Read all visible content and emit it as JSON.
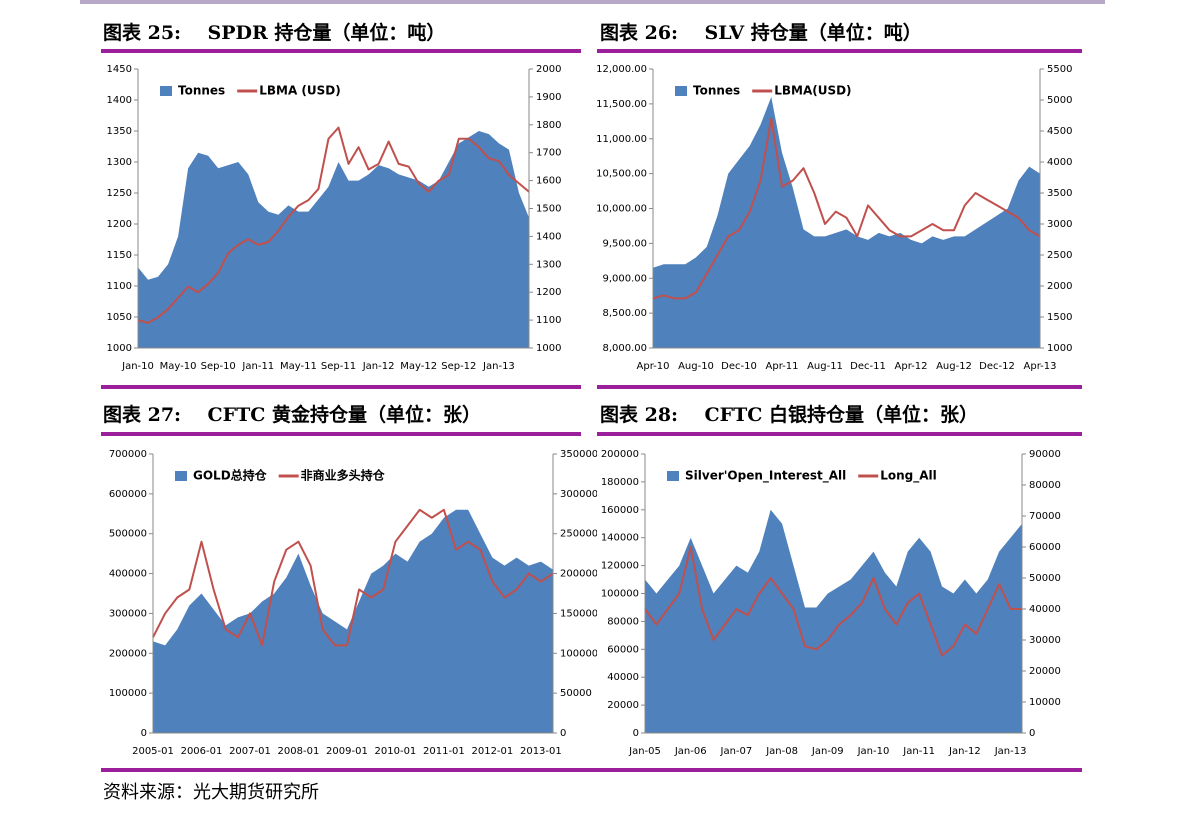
{
  "source": "资料来源：光大期货研究所",
  "chart_data": [
    {
      "type": "combo",
      "title": "图表 25:    SPDR 持仓量（单位：吨）",
      "legend": "upper left",
      "categories": [
        "Jan-10",
        null,
        null,
        null,
        "May-10",
        null,
        null,
        null,
        "Sep-10",
        null,
        null,
        null,
        "Jan-11",
        null,
        null,
        null,
        "May-11",
        null,
        null,
        null,
        "Sep-11",
        null,
        null,
        null,
        "Jan-12",
        null,
        null,
        null,
        "May-12",
        null,
        null,
        null,
        "Sep-12",
        null,
        null,
        null,
        "Jan-13",
        null,
        null,
        null
      ],
      "ylim": [
        1000,
        1450
      ],
      "yticks": [
        1000,
        1050,
        1100,
        1150,
        1200,
        1250,
        1300,
        1350,
        1400,
        1450
      ],
      "y2lim": [
        1000,
        2000
      ],
      "y2ticks": [
        1000,
        1100,
        1200,
        1300,
        1400,
        1500,
        1600,
        1700,
        1800,
        1900,
        2000
      ],
      "series": [
        {
          "name": "Tonnes",
          "type": "area",
          "color": "#4f81bd",
          "values": [
            1130,
            1110,
            1115,
            1135,
            1180,
            1290,
            1315,
            1310,
            1290,
            1295,
            1300,
            1280,
            1235,
            1220,
            1215,
            1230,
            1220,
            1220,
            1240,
            1260,
            1300,
            1270,
            1270,
            1280,
            1295,
            1290,
            1280,
            1275,
            1270,
            1260,
            1270,
            1300,
            1330,
            1340,
            1350,
            1345,
            1330,
            1320,
            1250,
            1210
          ]
        },
        {
          "name": "LBMA (USD)",
          "type": "line",
          "axis": "y2",
          "color": "#c0504d",
          "values": [
            1100,
            1090,
            1110,
            1140,
            1180,
            1220,
            1200,
            1230,
            1270,
            1340,
            1370,
            1390,
            1370,
            1380,
            1420,
            1470,
            1510,
            1530,
            1570,
            1750,
            1790,
            1660,
            1720,
            1640,
            1660,
            1740,
            1660,
            1650,
            1590,
            1560,
            1600,
            1620,
            1750,
            1750,
            1720,
            1680,
            1670,
            1620,
            1590,
            1560
          ]
        }
      ]
    },
    {
      "type": "combo",
      "title": "图表 26:    SLV 持仓量（单位：吨）",
      "legend": "upper left",
      "categories": [
        "Apr-10",
        null,
        null,
        null,
        "Aug-10",
        null,
        null,
        null,
        "Dec-10",
        null,
        null,
        null,
        "Apr-11",
        null,
        null,
        null,
        "Aug-11",
        null,
        null,
        null,
        "Dec-11",
        null,
        null,
        null,
        "Apr-12",
        null,
        null,
        null,
        "Aug-12",
        null,
        null,
        null,
        "Dec-12",
        null,
        null,
        null,
        "Apr-13"
      ],
      "ylim": [
        8000,
        12000
      ],
      "yticks": [
        {
          "value": 8000,
          "label": "8,000.00"
        },
        {
          "value": 8500,
          "label": "8,500.00"
        },
        {
          "value": 9000,
          "label": "9,000.00"
        },
        {
          "value": 9500,
          "label": "9,500.00"
        },
        {
          "value": 10000,
          "label": "10,000.00"
        },
        {
          "value": 10500,
          "label": "10,500.00"
        },
        {
          "value": 11000,
          "label": "11,000.00"
        },
        {
          "value": 11500,
          "label": "11,500.00"
        },
        {
          "value": 12000,
          "label": "12,000.00"
        }
      ],
      "y2lim": [
        1000,
        5500
      ],
      "y2ticks": [
        1000,
        1500,
        2000,
        2500,
        3000,
        3500,
        4000,
        4500,
        5000,
        5500
      ],
      "series": [
        {
          "name": "Tonnes",
          "type": "area",
          "color": "#4f81bd",
          "values": [
            9150,
            9200,
            9200,
            9200,
            9300,
            9450,
            9900,
            10500,
            10700,
            10900,
            11200,
            11600,
            10800,
            10300,
            9700,
            9600,
            9600,
            9650,
            9700,
            9600,
            9550,
            9650,
            9600,
            9650,
            9550,
            9500,
            9600,
            9550,
            9600,
            9600,
            9700,
            9800,
            9900,
            10000,
            10400,
            10600,
            10500
          ]
        },
        {
          "name": "LBMA(USD)",
          "type": "line",
          "axis": "y2",
          "color": "#c0504d",
          "values": [
            1800,
            1850,
            1800,
            1800,
            1900,
            2200,
            2500,
            2800,
            2900,
            3200,
            3700,
            4700,
            3600,
            3700,
            3900,
            3500,
            3000,
            3200,
            3100,
            2800,
            3300,
            3100,
            2900,
            2800,
            2800,
            2900,
            3000,
            2900,
            2900,
            3300,
            3500,
            3400,
            3300,
            3200,
            3100,
            2900,
            2800
          ]
        }
      ]
    },
    {
      "type": "combo",
      "title": "图表 27:    CFTC 黄金持仓量（单位：张）",
      "legend": "upper left",
      "categories": [
        "2005-01",
        null,
        null,
        null,
        "2006-01",
        null,
        null,
        null,
        "2007-01",
        null,
        null,
        null,
        "2008-01",
        null,
        null,
        null,
        "2009-01",
        null,
        null,
        null,
        "2010-01",
        null,
        null,
        null,
        "2011-01",
        null,
        null,
        null,
        "2012-01",
        null,
        null,
        null,
        "2013-01",
        null
      ],
      "ylim": [
        0,
        700000
      ],
      "yticks": [
        0,
        100000,
        200000,
        300000,
        400000,
        500000,
        600000,
        700000
      ],
      "y2lim": [
        0,
        350000
      ],
      "y2ticks": [
        0,
        50000,
        100000,
        150000,
        200000,
        250000,
        300000,
        350000
      ],
      "series": [
        {
          "name": "GOLD总持仓",
          "type": "area",
          "color": "#4f81bd",
          "values": [
            230000,
            220000,
            260000,
            320000,
            350000,
            310000,
            270000,
            290000,
            300000,
            330000,
            350000,
            390000,
            450000,
            370000,
            300000,
            280000,
            260000,
            330000,
            400000,
            420000,
            450000,
            430000,
            480000,
            500000,
            540000,
            560000,
            560000,
            500000,
            440000,
            420000,
            440000,
            420000,
            430000,
            410000
          ]
        },
        {
          "name": "非商业多头持仓",
          "type": "line",
          "axis": "y2",
          "color": "#c0504d",
          "values": [
            120000,
            150000,
            170000,
            180000,
            240000,
            180000,
            130000,
            120000,
            150000,
            110000,
            190000,
            230000,
            240000,
            210000,
            130000,
            110000,
            110000,
            180000,
            170000,
            180000,
            240000,
            260000,
            280000,
            270000,
            280000,
            230000,
            240000,
            230000,
            190000,
            170000,
            180000,
            200000,
            190000,
            200000
          ]
        }
      ]
    },
    {
      "type": "combo",
      "title": "图表 28:    CFTC 白银持仓量（单位：张）",
      "legend": "upper left",
      "categories": [
        "Jan-05",
        null,
        null,
        null,
        "Jan-06",
        null,
        null,
        null,
        "Jan-07",
        null,
        null,
        null,
        "Jan-08",
        null,
        null,
        null,
        "Jan-09",
        null,
        null,
        null,
        "Jan-10",
        null,
        null,
        null,
        "Jan-11",
        null,
        null,
        null,
        "Jan-12",
        null,
        null,
        null,
        "Jan-13",
        null
      ],
      "ylim": [
        0,
        200000
      ],
      "yticks": [
        0,
        20000,
        40000,
        60000,
        80000,
        100000,
        120000,
        140000,
        160000,
        180000,
        200000
      ],
      "y2lim": [
        0,
        90000
      ],
      "y2ticks": [
        0,
        10000,
        20000,
        30000,
        40000,
        50000,
        60000,
        70000,
        80000,
        90000
      ],
      "series": [
        {
          "name": "Silver'Open_Interest_All",
          "type": "area",
          "color": "#4f81bd",
          "values": [
            110000,
            100000,
            110000,
            120000,
            140000,
            120000,
            100000,
            110000,
            120000,
            115000,
            130000,
            160000,
            150000,
            120000,
            90000,
            90000,
            100000,
            105000,
            110000,
            120000,
            130000,
            115000,
            105000,
            130000,
            140000,
            130000,
            105000,
            100000,
            110000,
            100000,
            110000,
            130000,
            140000,
            150000
          ]
        },
        {
          "name": "Long_All",
          "type": "line",
          "axis": "y2",
          "color": "#c0504d",
          "values": [
            40000,
            35000,
            40000,
            45000,
            60000,
            40000,
            30000,
            35000,
            40000,
            38000,
            45000,
            50000,
            45000,
            40000,
            28000,
            27000,
            30000,
            35000,
            38000,
            42000,
            50000,
            40000,
            35000,
            42000,
            45000,
            35000,
            25000,
            28000,
            35000,
            32000,
            40000,
            48000,
            40000,
            40000
          ]
        }
      ]
    }
  ]
}
